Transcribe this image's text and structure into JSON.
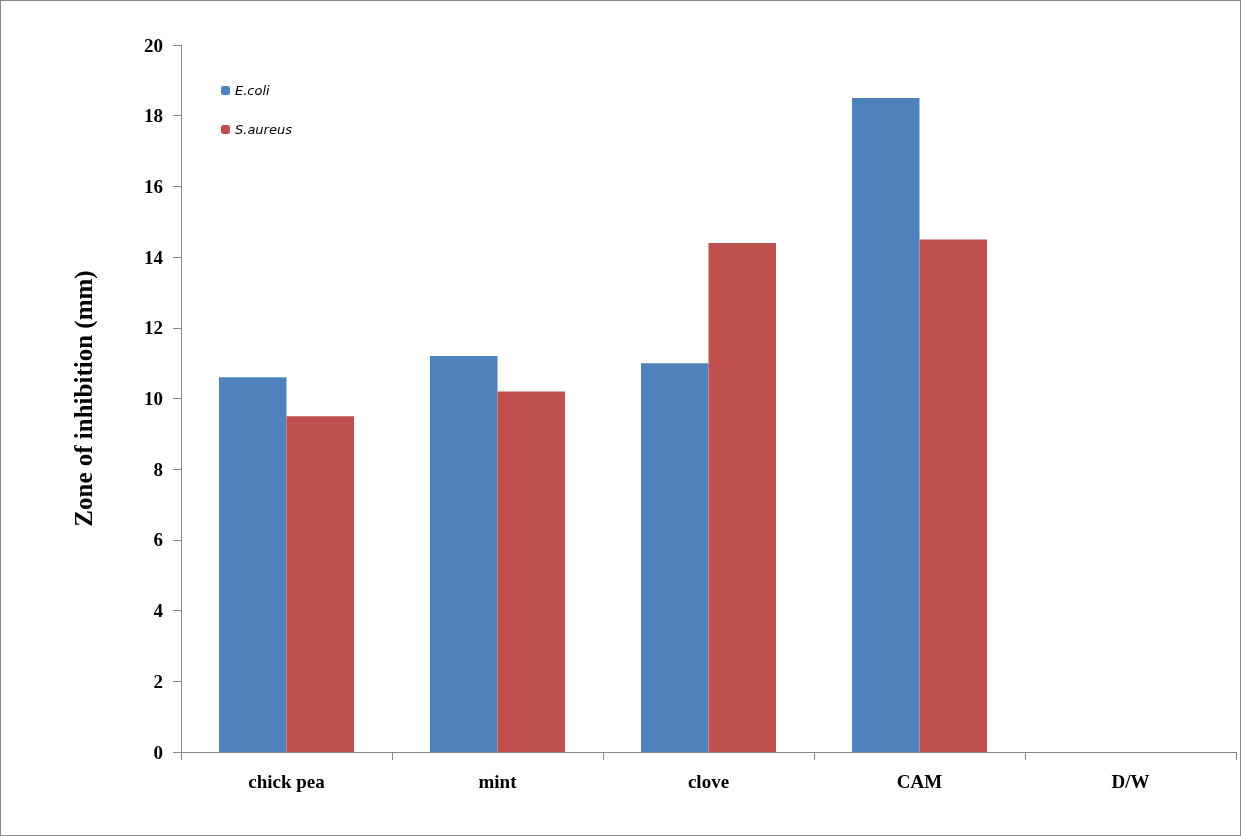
{
  "chart_data": {
    "type": "bar",
    "ylabel": "Zone of inhibition (mm)",
    "categories": [
      "chick pea",
      "mint",
      "clove",
      "CAM",
      "D/W"
    ],
    "series": [
      {
        "name": "E.coli",
        "color": "#4f81bd",
        "values": [
          10.6,
          11.2,
          11.0,
          18.5,
          0
        ]
      },
      {
        "name": "S.aureus",
        "color": "#c0504d",
        "values": [
          9.5,
          10.2,
          14.4,
          14.5,
          0
        ]
      }
    ],
    "ylim": [
      0,
      20
    ],
    "yticks": [
      0,
      2,
      4,
      6,
      8,
      10,
      12,
      14,
      16,
      18,
      20
    ],
    "grid": false,
    "legend": "top left"
  }
}
